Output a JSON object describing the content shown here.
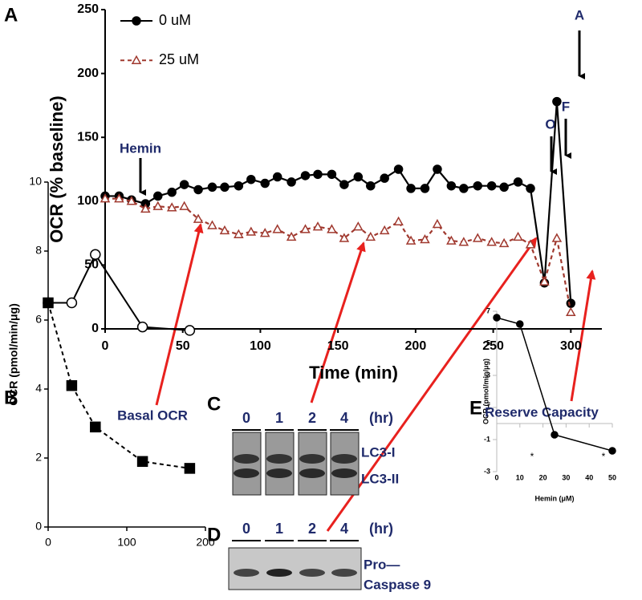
{
  "chart_data": [
    {
      "type": "line",
      "panel": "A",
      "xlabel": "Time (min)",
      "ylabel": "OCR (% baseline)",
      "xlim": [
        0,
        320
      ],
      "xticks": [
        0,
        50,
        100,
        150,
        200,
        250,
        300
      ],
      "ylim": [
        0,
        250
      ],
      "yticks": [
        0,
        50,
        100,
        150,
        200,
        250
      ],
      "legend": "upper-left",
      "x": [
        0,
        9,
        17,
        26,
        34,
        43,
        51,
        60,
        69,
        77,
        86,
        94,
        103,
        111,
        120,
        129,
        137,
        146,
        154,
        163,
        171,
        180,
        189,
        197,
        206,
        214,
        223,
        231,
        240,
        249,
        257,
        266,
        274,
        283,
        291,
        300
      ],
      "series": [
        {
          "name": "0 uM",
          "color": "#000000",
          "marker": "circle",
          "filled": true,
          "dashed": false,
          "values": [
            104,
            104,
            101,
            98,
            104,
            107,
            113,
            109,
            111,
            111,
            112,
            117,
            114,
            119,
            115,
            120,
            121,
            121,
            113,
            119,
            112,
            118,
            125,
            110,
            110,
            125,
            112,
            110,
            112,
            112,
            111,
            115,
            110,
            36,
            178,
            20
          ]
        },
        {
          "name": "25 uM",
          "color": "#a0392f",
          "marker": "triangle",
          "filled": false,
          "dashed": true,
          "values": [
            102,
            102,
            100,
            94,
            96,
            95,
            96,
            86,
            81,
            77,
            74,
            76,
            75,
            78,
            72,
            78,
            80,
            78,
            71,
            80,
            72,
            77,
            84,
            69,
            70,
            82,
            69,
            68,
            71,
            68,
            67,
            72,
            66,
            37,
            71,
            13
          ]
        }
      ],
      "annotations": [
        "Hemin",
        "O",
        "F",
        "A"
      ]
    },
    {
      "type": "line",
      "panel": "B",
      "title": "Basal OCR",
      "ylabel": "OCR (pmol/min/μg)",
      "xlim": [
        0,
        200
      ],
      "xticks": [
        0,
        100,
        200
      ],
      "ylim": [
        0,
        10
      ],
      "yticks": [
        0,
        2,
        4,
        6,
        8,
        10
      ],
      "x": [
        0,
        30,
        60,
        120,
        180
      ],
      "series": [
        {
          "color": "#000000",
          "marker": "circle",
          "filled": false,
          "dashed": false,
          "values": [
            6.5,
            6.5,
            7.9,
            5.8,
            5.7
          ]
        },
        {
          "color": "#000000",
          "marker": "square",
          "filled": true,
          "dashed": true,
          "values": [
            6.5,
            4.1,
            2.9,
            1.9,
            1.7
          ]
        }
      ]
    },
    {
      "type": "line",
      "panel": "E",
      "title": "Reserve Capacity",
      "xlabel": "Hemin (μM)",
      "ylabel": "OCR (pmol/min/μg)",
      "xlim": [
        0,
        50
      ],
      "xticks": [
        0,
        10,
        20,
        30,
        40,
        50
      ],
      "ylim": [
        -3,
        7
      ],
      "yticks": [
        -3,
        -1,
        1,
        3,
        5,
        7
      ],
      "x": [
        0,
        10,
        25,
        50
      ],
      "series": [
        {
          "color": "#000000",
          "marker": "circle",
          "filled": true,
          "dashed": false,
          "values": [
            6.6,
            6.2,
            -0.7,
            -1.7
          ]
        }
      ],
      "annotations": [
        "*",
        "*"
      ]
    }
  ],
  "blots": [
    {
      "panel": "C",
      "lanes": [
        "0",
        "1",
        "2",
        "4"
      ],
      "unit": "(hr)",
      "labels": [
        "LC3-I",
        "LC3-II"
      ]
    },
    {
      "panel": "D",
      "lanes": [
        "0",
        "1",
        "2",
        "4"
      ],
      "unit": "(hr)",
      "labels": [
        "Pro—",
        "Caspase 9"
      ]
    }
  ]
}
